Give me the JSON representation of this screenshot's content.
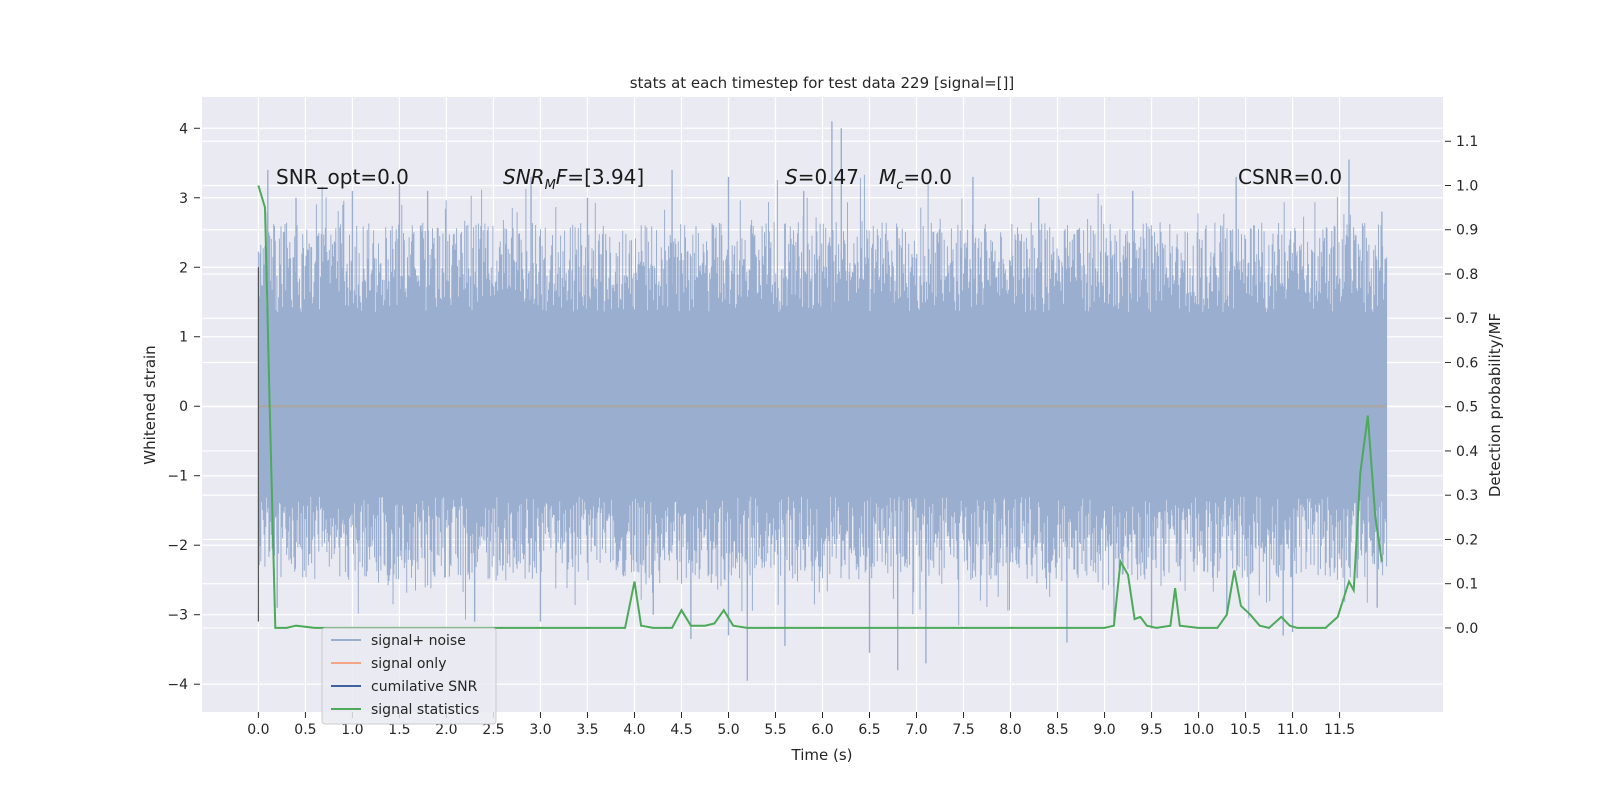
{
  "chart_data": {
    "type": "line",
    "title": "stats at each timestep for test data 229 [signal=[]]",
    "xlabel": "Time (s)",
    "ylabel": "Whitened strain",
    "y2label": "Detection probability/MF",
    "xlim": [
      -0.6,
      12.6
    ],
    "ylim": [
      -4.4,
      4.45
    ],
    "y2lim": [
      -0.19,
      1.2
    ],
    "x_ticks": [
      "0.0",
      "0.5",
      "1.0",
      "1.5",
      "2.0",
      "2.5",
      "3.0",
      "3.5",
      "4.0",
      "4.5",
      "5.0",
      "5.5",
      "6.0",
      "6.5",
      "7.0",
      "7.5",
      "8.0",
      "8.5",
      "9.0",
      "9.5",
      "10.0",
      "10.5",
      "11.0",
      "11.5"
    ],
    "y_ticks": [
      "4",
      "3",
      "2",
      "1",
      "0",
      "−1",
      "−2",
      "−3",
      "−4"
    ],
    "y2_ticks": [
      "1.1",
      "1.0",
      "0.9",
      "0.8",
      "0.7",
      "0.6",
      "0.5",
      "0.4",
      "0.3",
      "0.2",
      "0.1",
      "0.0"
    ],
    "grid": true,
    "legend_position": "lower-left",
    "annotations": {
      "snr_opt": "SNR_opt=0.0",
      "snr_mf": "[3.94]",
      "s_stat": "=0.47",
      "mc": "=0.0",
      "csnr": "CSNR=0.0"
    },
    "noise_envelope": {
      "x_range": [
        0.0,
        12.0
      ],
      "y_range": [
        -1.3,
        1.35
      ],
      "spikes": [
        {
          "x": 0.1,
          "y": 3.4
        },
        {
          "x": 0.4,
          "y": 3.0
        },
        {
          "x": 0.9,
          "y": 2.9
        },
        {
          "x": 1.0,
          "y": 3.1
        },
        {
          "x": 1.5,
          "y": 3.2
        },
        {
          "x": 1.8,
          "y": 3.1
        },
        {
          "x": 2.9,
          "y": 3.3
        },
        {
          "x": 3.5,
          "y": 3.0
        },
        {
          "x": 4.4,
          "y": 3.4
        },
        {
          "x": 5.0,
          "y": 3.3
        },
        {
          "x": 5.8,
          "y": 3.1
        },
        {
          "x": 6.1,
          "y": 4.1
        },
        {
          "x": 6.2,
          "y": 4.0
        },
        {
          "x": 7.6,
          "y": 3.3
        },
        {
          "x": 8.3,
          "y": 3.0
        },
        {
          "x": 9.3,
          "y": 3.1
        },
        {
          "x": 10.4,
          "y": 3.3
        },
        {
          "x": 11.6,
          "y": 3.55
        },
        {
          "x": 11.95,
          "y": 2.8
        },
        {
          "x": 0.2,
          "y": -2.9
        },
        {
          "x": 2.3,
          "y": -3.1
        },
        {
          "x": 3.0,
          "y": -3.1
        },
        {
          "x": 4.2,
          "y": -3.0
        },
        {
          "x": 4.6,
          "y": -3.35
        },
        {
          "x": 5.0,
          "y": -3.3
        },
        {
          "x": 5.2,
          "y": -3.95
        },
        {
          "x": 5.6,
          "y": -3.45
        },
        {
          "x": 6.5,
          "y": -3.55
        },
        {
          "x": 6.8,
          "y": -3.8
        },
        {
          "x": 7.1,
          "y": -3.7
        },
        {
          "x": 8.6,
          "y": -3.4
        },
        {
          "x": 9.1,
          "y": -3.1
        },
        {
          "x": 9.5,
          "y": -3.2
        },
        {
          "x": 10.3,
          "y": -3.0
        },
        {
          "x": 10.9,
          "y": -3.3
        },
        {
          "x": 11.0,
          "y": -3.25
        },
        {
          "x": 11.9,
          "y": -2.9
        }
      ]
    },
    "series": [
      {
        "name": "signal+ noise",
        "color": "#9aaed0"
      },
      {
        "name": "signal only",
        "color": "#f2a686"
      },
      {
        "name": "cumilative SNR",
        "color": "#4060a0"
      },
      {
        "name": "signal statistics",
        "color": "#4caa5a",
        "x": [
          0.0,
          0.07,
          0.12,
          0.18,
          0.3,
          0.4,
          0.6,
          1.0,
          2.0,
          3.0,
          3.9,
          4.0,
          4.07,
          4.2,
          4.4,
          4.5,
          4.6,
          4.75,
          4.85,
          4.95,
          5.05,
          5.2,
          5.5,
          6.0,
          7.0,
          8.0,
          9.0,
          9.1,
          9.17,
          9.25,
          9.32,
          9.38,
          9.45,
          9.55,
          9.7,
          9.75,
          9.8,
          10.0,
          10.2,
          10.3,
          10.38,
          10.45,
          10.55,
          10.65,
          10.75,
          10.88,
          10.97,
          11.05,
          11.2,
          11.35,
          11.48,
          11.6,
          11.65,
          11.72,
          11.8,
          11.88,
          11.95
        ],
        "y": [
          1.0,
          0.95,
          0.5,
          0.0,
          0.0,
          0.005,
          0.0,
          0.0,
          0.0,
          0.0,
          0.0,
          0.105,
          0.005,
          0.0,
          0.0,
          0.04,
          0.005,
          0.005,
          0.01,
          0.04,
          0.005,
          0.0,
          0.0,
          0.0,
          0.0,
          0.0,
          0.0,
          0.005,
          0.15,
          0.12,
          0.02,
          0.025,
          0.005,
          0.0,
          0.005,
          0.09,
          0.005,
          0.0,
          0.0,
          0.03,
          0.13,
          0.05,
          0.03,
          0.005,
          0.0,
          0.025,
          0.005,
          0.0,
          0.0,
          0.0,
          0.025,
          0.105,
          0.085,
          0.35,
          0.48,
          0.25,
          0.15
        ]
      }
    ]
  }
}
